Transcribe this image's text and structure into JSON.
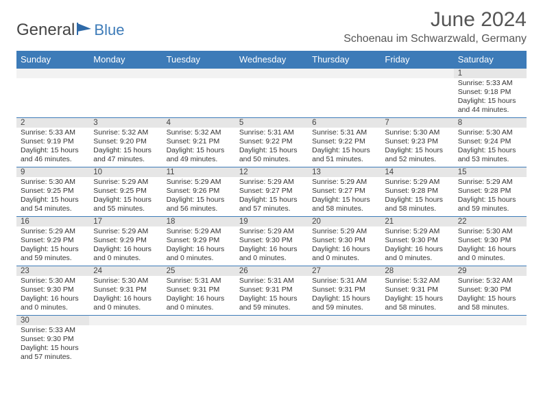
{
  "brand": {
    "general": "General",
    "blue": "Blue"
  },
  "title": "June 2024",
  "location": "Schoenau im Schwarzwald, Germany",
  "colors": {
    "header_bg": "#3d7bb8",
    "daynum_bg": "#e6e6e6"
  },
  "weekdays": [
    "Sunday",
    "Monday",
    "Tuesday",
    "Wednesday",
    "Thursday",
    "Friday",
    "Saturday"
  ],
  "weeks": [
    [
      null,
      null,
      null,
      null,
      null,
      null,
      {
        "n": "1",
        "sunrise": "Sunrise: 5:33 AM",
        "sunset": "Sunset: 9:18 PM",
        "daylight": "Daylight: 15 hours and 44 minutes."
      }
    ],
    [
      {
        "n": "2",
        "sunrise": "Sunrise: 5:33 AM",
        "sunset": "Sunset: 9:19 PM",
        "daylight": "Daylight: 15 hours and 46 minutes."
      },
      {
        "n": "3",
        "sunrise": "Sunrise: 5:32 AM",
        "sunset": "Sunset: 9:20 PM",
        "daylight": "Daylight: 15 hours and 47 minutes."
      },
      {
        "n": "4",
        "sunrise": "Sunrise: 5:32 AM",
        "sunset": "Sunset: 9:21 PM",
        "daylight": "Daylight: 15 hours and 49 minutes."
      },
      {
        "n": "5",
        "sunrise": "Sunrise: 5:31 AM",
        "sunset": "Sunset: 9:22 PM",
        "daylight": "Daylight: 15 hours and 50 minutes."
      },
      {
        "n": "6",
        "sunrise": "Sunrise: 5:31 AM",
        "sunset": "Sunset: 9:22 PM",
        "daylight": "Daylight: 15 hours and 51 minutes."
      },
      {
        "n": "7",
        "sunrise": "Sunrise: 5:30 AM",
        "sunset": "Sunset: 9:23 PM",
        "daylight": "Daylight: 15 hours and 52 minutes."
      },
      {
        "n": "8",
        "sunrise": "Sunrise: 5:30 AM",
        "sunset": "Sunset: 9:24 PM",
        "daylight": "Daylight: 15 hours and 53 minutes."
      }
    ],
    [
      {
        "n": "9",
        "sunrise": "Sunrise: 5:30 AM",
        "sunset": "Sunset: 9:25 PM",
        "daylight": "Daylight: 15 hours and 54 minutes."
      },
      {
        "n": "10",
        "sunrise": "Sunrise: 5:29 AM",
        "sunset": "Sunset: 9:25 PM",
        "daylight": "Daylight: 15 hours and 55 minutes."
      },
      {
        "n": "11",
        "sunrise": "Sunrise: 5:29 AM",
        "sunset": "Sunset: 9:26 PM",
        "daylight": "Daylight: 15 hours and 56 minutes."
      },
      {
        "n": "12",
        "sunrise": "Sunrise: 5:29 AM",
        "sunset": "Sunset: 9:27 PM",
        "daylight": "Daylight: 15 hours and 57 minutes."
      },
      {
        "n": "13",
        "sunrise": "Sunrise: 5:29 AM",
        "sunset": "Sunset: 9:27 PM",
        "daylight": "Daylight: 15 hours and 58 minutes."
      },
      {
        "n": "14",
        "sunrise": "Sunrise: 5:29 AM",
        "sunset": "Sunset: 9:28 PM",
        "daylight": "Daylight: 15 hours and 58 minutes."
      },
      {
        "n": "15",
        "sunrise": "Sunrise: 5:29 AM",
        "sunset": "Sunset: 9:28 PM",
        "daylight": "Daylight: 15 hours and 59 minutes."
      }
    ],
    [
      {
        "n": "16",
        "sunrise": "Sunrise: 5:29 AM",
        "sunset": "Sunset: 9:29 PM",
        "daylight": "Daylight: 15 hours and 59 minutes."
      },
      {
        "n": "17",
        "sunrise": "Sunrise: 5:29 AM",
        "sunset": "Sunset: 9:29 PM",
        "daylight": "Daylight: 16 hours and 0 minutes."
      },
      {
        "n": "18",
        "sunrise": "Sunrise: 5:29 AM",
        "sunset": "Sunset: 9:29 PM",
        "daylight": "Daylight: 16 hours and 0 minutes."
      },
      {
        "n": "19",
        "sunrise": "Sunrise: 5:29 AM",
        "sunset": "Sunset: 9:30 PM",
        "daylight": "Daylight: 16 hours and 0 minutes."
      },
      {
        "n": "20",
        "sunrise": "Sunrise: 5:29 AM",
        "sunset": "Sunset: 9:30 PM",
        "daylight": "Daylight: 16 hours and 0 minutes."
      },
      {
        "n": "21",
        "sunrise": "Sunrise: 5:29 AM",
        "sunset": "Sunset: 9:30 PM",
        "daylight": "Daylight: 16 hours and 0 minutes."
      },
      {
        "n": "22",
        "sunrise": "Sunrise: 5:30 AM",
        "sunset": "Sunset: 9:30 PM",
        "daylight": "Daylight: 16 hours and 0 minutes."
      }
    ],
    [
      {
        "n": "23",
        "sunrise": "Sunrise: 5:30 AM",
        "sunset": "Sunset: 9:30 PM",
        "daylight": "Daylight: 16 hours and 0 minutes."
      },
      {
        "n": "24",
        "sunrise": "Sunrise: 5:30 AM",
        "sunset": "Sunset: 9:31 PM",
        "daylight": "Daylight: 16 hours and 0 minutes."
      },
      {
        "n": "25",
        "sunrise": "Sunrise: 5:31 AM",
        "sunset": "Sunset: 9:31 PM",
        "daylight": "Daylight: 16 hours and 0 minutes."
      },
      {
        "n": "26",
        "sunrise": "Sunrise: 5:31 AM",
        "sunset": "Sunset: 9:31 PM",
        "daylight": "Daylight: 15 hours and 59 minutes."
      },
      {
        "n": "27",
        "sunrise": "Sunrise: 5:31 AM",
        "sunset": "Sunset: 9:31 PM",
        "daylight": "Daylight: 15 hours and 59 minutes."
      },
      {
        "n": "28",
        "sunrise": "Sunrise: 5:32 AM",
        "sunset": "Sunset: 9:31 PM",
        "daylight": "Daylight: 15 hours and 58 minutes."
      },
      {
        "n": "29",
        "sunrise": "Sunrise: 5:32 AM",
        "sunset": "Sunset: 9:30 PM",
        "daylight": "Daylight: 15 hours and 58 minutes."
      }
    ],
    [
      {
        "n": "30",
        "sunrise": "Sunrise: 5:33 AM",
        "sunset": "Sunset: 9:30 PM",
        "daylight": "Daylight: 15 hours and 57 minutes."
      },
      null,
      null,
      null,
      null,
      null,
      null
    ]
  ]
}
